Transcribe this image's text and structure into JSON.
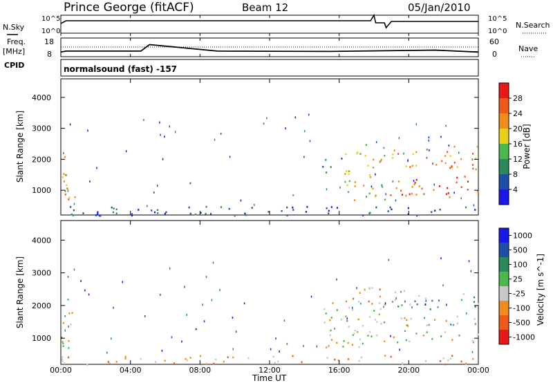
{
  "header": {
    "station": "Prince George (fitACF)",
    "beam": "Beam 12",
    "date": "05/Jan/2010"
  },
  "labels": {
    "nsky": "N.Sky",
    "nsearch": "N.Search",
    "freq": "Freq.",
    "mhz": "[MHz]",
    "cpid": "CPID",
    "nave": "Nave",
    "program": "normalsound (fast) -157",
    "xlabel": "Time UT",
    "ylabel": "Slant Range [km]"
  },
  "ticks": {
    "noise_left": [
      "10^5",
      "10^0"
    ],
    "noise_right": [
      "10^5",
      "10^0"
    ],
    "freq_left": [
      "18",
      "8"
    ],
    "nave_right": [
      "60",
      "0"
    ],
    "range": [
      "1000",
      "2000",
      "3000",
      "4000"
    ],
    "time": [
      "00:00",
      "04:00",
      "08:00",
      "12:00",
      "16:00",
      "20:00",
      "00:00"
    ]
  },
  "colors": {
    "power": [
      "#1818e8",
      "#1f4fa8",
      "#2c8a5a",
      "#4ab84a",
      "#e8d018",
      "#f08c18",
      "#f05a18",
      "#e81818"
    ],
    "velocity": [
      "#1818e8",
      "#1f4fa8",
      "#2c8a5a",
      "#4ab84a",
      "#c8c8c8",
      "#f08c18",
      "#f05a18",
      "#e81818"
    ]
  },
  "chart_data": [
    {
      "type": "line",
      "title": "N.Sky / N.Search",
      "x": [
        "00:00",
        "04:00",
        "08:00",
        "12:00",
        "16:00",
        "18:00",
        "19:00",
        "20:00",
        "00:00"
      ],
      "note_level": "noise roughly constant near upper band, brief dip 18:00-19:00"
    },
    {
      "type": "line",
      "title": "Freq. [MHz]",
      "ylim": [
        8,
        18
      ],
      "series": [
        {
          "name": "Freq.",
          "x_hours": [
            0,
            0.3,
            4.6,
            5.1,
            9.0,
            15.5,
            21.5,
            24
          ],
          "values": [
            10.5,
            11.0,
            11.0,
            14.5,
            11.0,
            10.8,
            11.5,
            10.5
          ]
        }
      ]
    },
    {
      "type": "heatmap",
      "title": "Power [dB]",
      "xlabel": "Time UT",
      "ylabel": "Slant Range [km]",
      "xlim_hours": [
        0,
        24
      ],
      "ylim": [
        200,
        4600
      ],
      "colorbar_ticks": [
        "4",
        "8",
        "12",
        "16",
        "20",
        "24",
        "28"
      ],
      "bands": [
        {
          "t0": 0.0,
          "t1": 0.8,
          "r0": 600,
          "r1": 2300,
          "level": 5
        },
        {
          "t0": 0.0,
          "t1": 24.0,
          "r0": 200,
          "r1": 500,
          "level": 1
        },
        {
          "t0": 7.4,
          "t1": 8.0,
          "r0": 1100,
          "r1": 1350,
          "level": 3
        },
        {
          "t0": 12.8,
          "t1": 14.0,
          "r0": 800,
          "r1": 900,
          "level": 2
        },
        {
          "t0": 15.0,
          "t1": 16.3,
          "r0": 1600,
          "r1": 2200,
          "level": 1
        },
        {
          "t0": 16.3,
          "t1": 18.6,
          "r0": 700,
          "r1": 2600,
          "level": 4
        },
        {
          "t0": 18.9,
          "t1": 24.0,
          "r0": 800,
          "r1": 1500,
          "level": 6
        },
        {
          "t0": 18.9,
          "t1": 24.0,
          "r0": 1700,
          "r1": 2500,
          "level": 5
        }
      ]
    },
    {
      "type": "heatmap",
      "title": "Velocity [m s^-1]",
      "xlabel": "Time UT",
      "ylabel": "Slant Range [km]",
      "xlim_hours": [
        0,
        24
      ],
      "ylim": [
        200,
        4600
      ],
      "colorbar_ticks": [
        "1000",
        "500",
        "100",
        "25",
        "-25",
        "-100",
        "-500",
        "-1000"
      ],
      "bands": [
        {
          "t0": 0.0,
          "t1": 0.8,
          "r0": 600,
          "r1": 2300,
          "level": 4
        },
        {
          "t0": 0.0,
          "t1": 24.0,
          "r0": 200,
          "r1": 500,
          "level": 5
        },
        {
          "t0": 7.4,
          "t1": 8.0,
          "r0": 1100,
          "r1": 1350,
          "level": 2
        },
        {
          "t0": 12.8,
          "t1": 14.0,
          "r0": 800,
          "r1": 900,
          "level": 5
        },
        {
          "t0": 15.0,
          "t1": 18.6,
          "r0": 700,
          "r1": 2200,
          "level": 4
        },
        {
          "t0": 16.3,
          "t1": 18.6,
          "r0": 1900,
          "r1": 2600,
          "level": 5
        },
        {
          "t0": 18.9,
          "t1": 24.0,
          "r0": 900,
          "r1": 1700,
          "level": 4
        },
        {
          "t0": 18.9,
          "t1": 24.0,
          "r0": 1900,
          "r1": 2500,
          "level": 3
        }
      ]
    }
  ]
}
